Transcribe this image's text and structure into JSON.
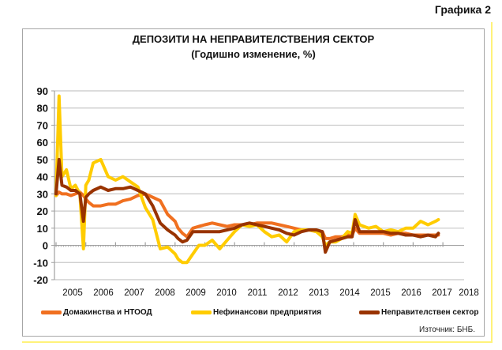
{
  "figure_label": "Графика 2",
  "source": "Източник: БНБ.",
  "chart_data": {
    "type": "line",
    "title": "ДЕПОЗИТИ НА НЕПРАВИТЕЛСТВЕНИЯ СЕКТОР",
    "subtitle": "(Годишно изменение, %)",
    "xlabel": "",
    "ylabel": "",
    "ylim": [
      -20,
      90
    ],
    "yticks": [
      90,
      80,
      70,
      60,
      50,
      40,
      30,
      20,
      10,
      0,
      -10,
      -20
    ],
    "xticks": [
      "2005",
      "2006",
      "2007",
      "2008",
      "2009",
      "2010",
      "2011",
      "2012",
      "2013",
      "2014",
      "2015",
      "2016",
      "2017",
      "2018"
    ],
    "grid": true,
    "legend_position": "bottom",
    "x": [
      2005.0,
      2005.1,
      2005.2,
      2005.35,
      2005.5,
      2005.65,
      2005.8,
      2005.92,
      2006.0,
      2006.1,
      2006.25,
      2006.5,
      2006.75,
      2007.0,
      2007.25,
      2007.5,
      2007.75,
      2008.0,
      2008.25,
      2008.5,
      2008.75,
      2009.0,
      2009.1,
      2009.25,
      2009.4,
      2009.6,
      2009.8,
      2010.0,
      2010.25,
      2010.5,
      2010.75,
      2011.0,
      2011.25,
      2011.5,
      2011.75,
      2012.0,
      2012.25,
      2012.5,
      2012.75,
      2013.0,
      2013.25,
      2013.5,
      2013.75,
      2013.95,
      2014.05,
      2014.2,
      2014.4,
      2014.6,
      2014.8,
      2014.95,
      2015.05,
      2015.2,
      2015.5,
      2015.75,
      2016.0,
      2016.25,
      2016.5,
      2016.75,
      2017.0,
      2017.25,
      2017.5,
      2017.75,
      2017.85
    ],
    "series": [
      {
        "name": "Домакинства и НТООД",
        "color": "#f07020",
        "values": [
          29,
          31,
          30,
          30,
          29,
          30,
          31,
          29,
          27,
          25,
          23,
          23,
          24,
          24,
          26,
          27,
          29,
          30,
          28,
          26,
          18,
          14,
          10,
          7,
          5,
          10,
          11,
          12,
          13,
          12,
          11,
          12,
          12,
          12,
          13,
          13,
          13,
          12,
          11,
          10,
          9,
          9,
          8,
          8,
          4,
          4,
          5,
          5,
          6,
          6,
          10,
          7,
          7,
          7,
          7,
          6,
          7,
          7,
          6,
          6,
          6,
          6,
          6
        ]
      },
      {
        "name": "Нефинансови предприятия",
        "color": "#ffcc00",
        "values": [
          29,
          87,
          40,
          44,
          33,
          35,
          30,
          -2,
          35,
          38,
          48,
          50,
          40,
          38,
          40,
          37,
          34,
          22,
          15,
          -2,
          -1,
          -5,
          -8,
          -10,
          -10,
          -5,
          0,
          0,
          3,
          -2,
          3,
          8,
          12,
          11,
          12,
          8,
          5,
          6,
          2,
          8,
          9,
          9,
          8,
          5,
          0,
          2,
          2,
          4,
          8,
          7,
          18,
          12,
          10,
          11,
          8,
          9,
          8,
          10,
          10,
          14,
          12,
          14,
          15
        ]
      },
      {
        "name": "Неправителствен сектор",
        "color": "#993300",
        "values": [
          30,
          50,
          35,
          34,
          32,
          32,
          30,
          14,
          28,
          30,
          32,
          34,
          32,
          33,
          33,
          34,
          32,
          30,
          23,
          13,
          9,
          6,
          4,
          2,
          3,
          8,
          8,
          8,
          8,
          8,
          9,
          10,
          12,
          13,
          12,
          11,
          10,
          9,
          7,
          6,
          8,
          9,
          9,
          8,
          -4,
          2,
          3,
          4,
          5,
          5,
          15,
          8,
          8,
          8,
          8,
          7,
          7,
          6,
          6,
          5,
          6,
          5,
          7
        ]
      }
    ]
  }
}
